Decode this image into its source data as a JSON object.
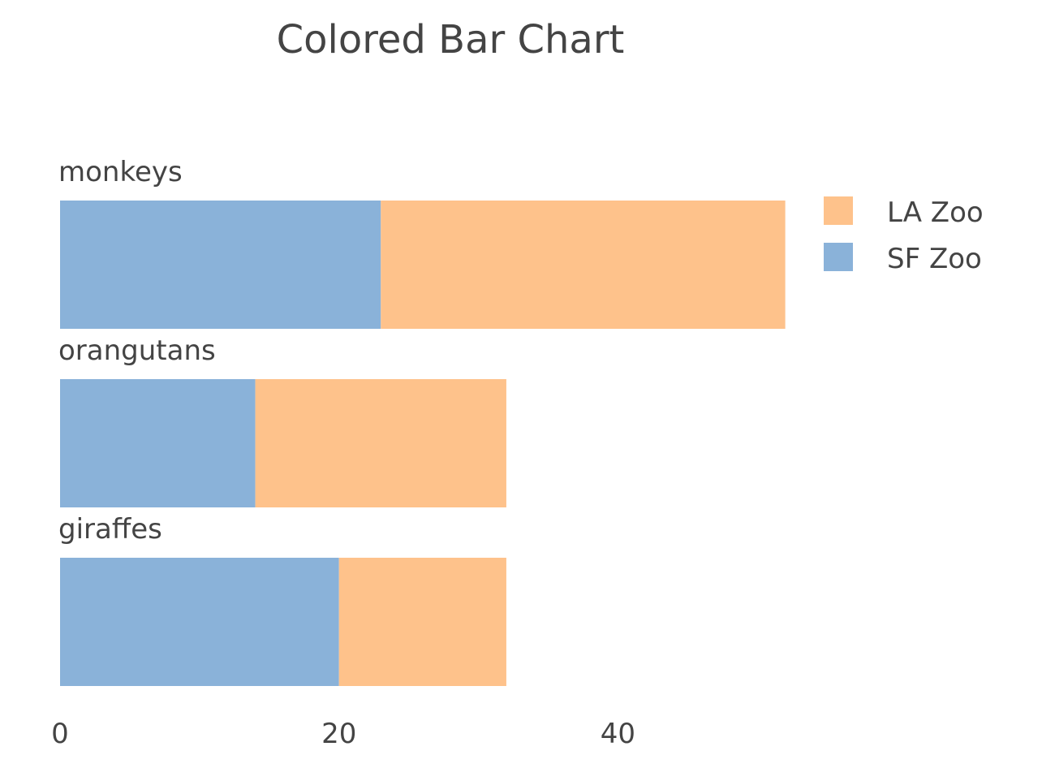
{
  "chart_data": {
    "type": "bar",
    "orientation": "horizontal",
    "barmode": "stack",
    "title": "Colored Bar Chart",
    "xlabel": "",
    "ylabel": "",
    "categories": [
      "giraffes",
      "orangutans",
      "monkeys"
    ],
    "series": [
      {
        "name": "SF Zoo",
        "values": [
          20,
          14,
          23
        ],
        "color": "#8ab2d9"
      },
      {
        "name": "LA Zoo",
        "values": [
          12,
          18,
          29
        ],
        "color": "#fec28b"
      }
    ],
    "xlim": [
      0,
      54
    ],
    "xticks": [
      0,
      20,
      40
    ],
    "grid": false,
    "category_labels_position": "above-bars",
    "legend": {
      "position": "top-right",
      "order": [
        "LA Zoo",
        "SF Zoo"
      ]
    }
  }
}
